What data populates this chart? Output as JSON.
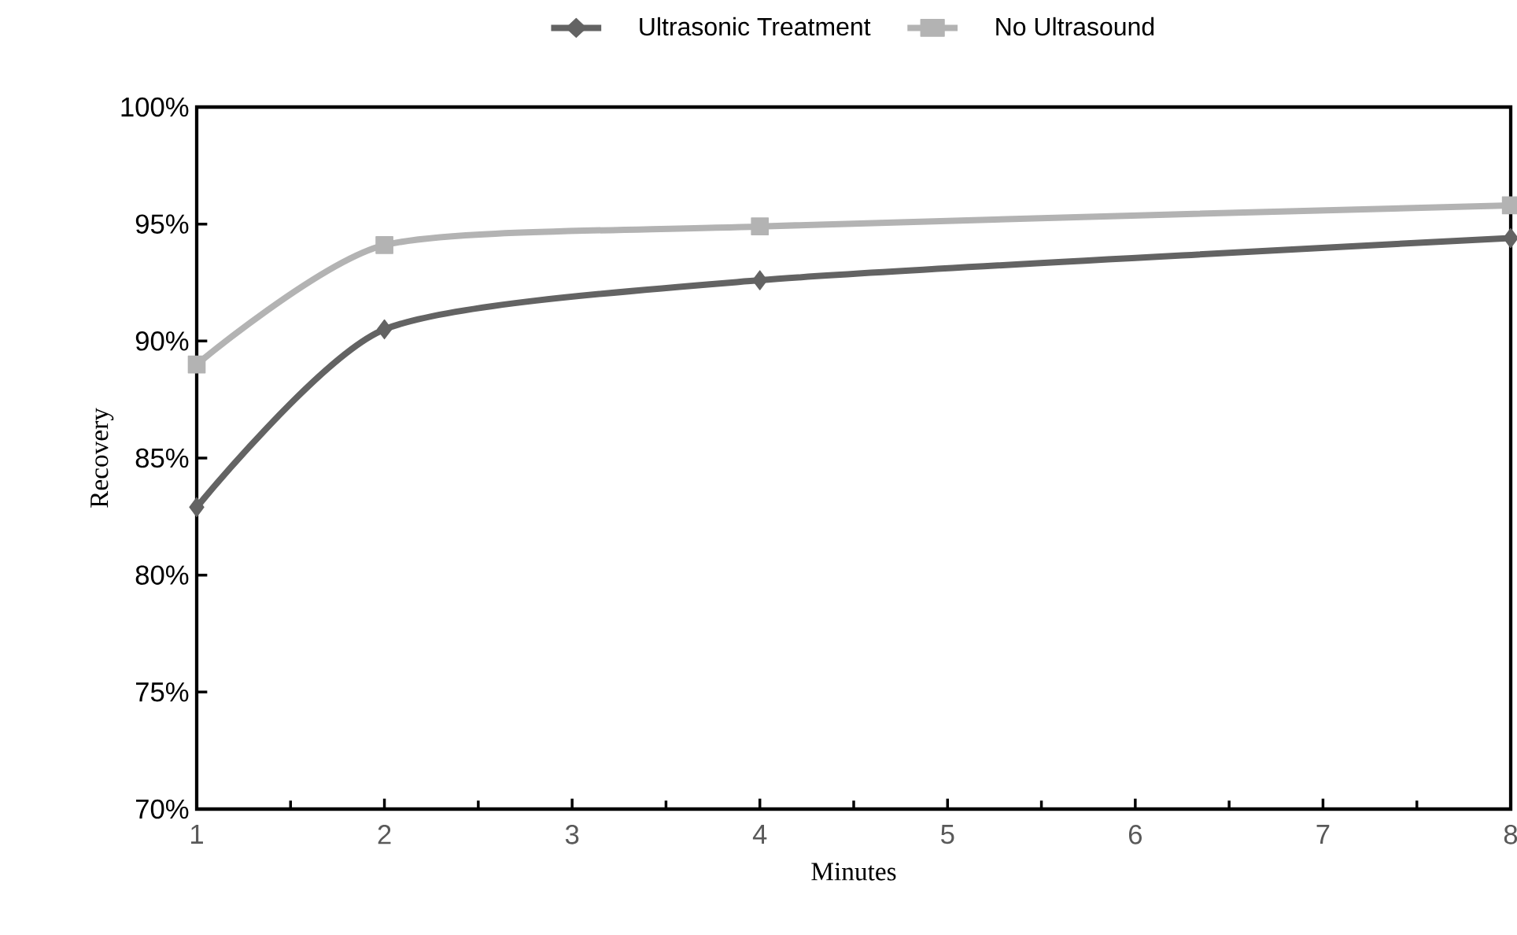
{
  "chart_data": {
    "type": "line",
    "xlabel": "Minutes",
    "ylabel": "Recovery",
    "x": [
      1,
      2,
      4,
      8
    ],
    "series": [
      {
        "name": "Ultrasonic Treatment",
        "color": "#636363",
        "marker": "diamond",
        "values": [
          82.9,
          90.5,
          92.6,
          94.4
        ]
      },
      {
        "name": "No Ultrasound",
        "color": "#b3b3b3",
        "marker": "square",
        "values": [
          89.0,
          94.1,
          94.9,
          95.8
        ]
      }
    ],
    "xlim": [
      1,
      8
    ],
    "xticks": [
      1,
      2,
      3,
      4,
      5,
      6,
      7,
      8
    ],
    "ylim": [
      70,
      100
    ],
    "yticks": [
      {
        "value": 70,
        "label": "70%"
      },
      {
        "value": 75,
        "label": "75%"
      },
      {
        "value": 80,
        "label": "80%"
      },
      {
        "value": 85,
        "label": "85%"
      },
      {
        "value": 90,
        "label": "90%"
      },
      {
        "value": 95,
        "label": "95%"
      },
      {
        "value": 100,
        "label": "100%"
      }
    ],
    "grid": false,
    "legend": "top",
    "line_style": "solid"
  }
}
